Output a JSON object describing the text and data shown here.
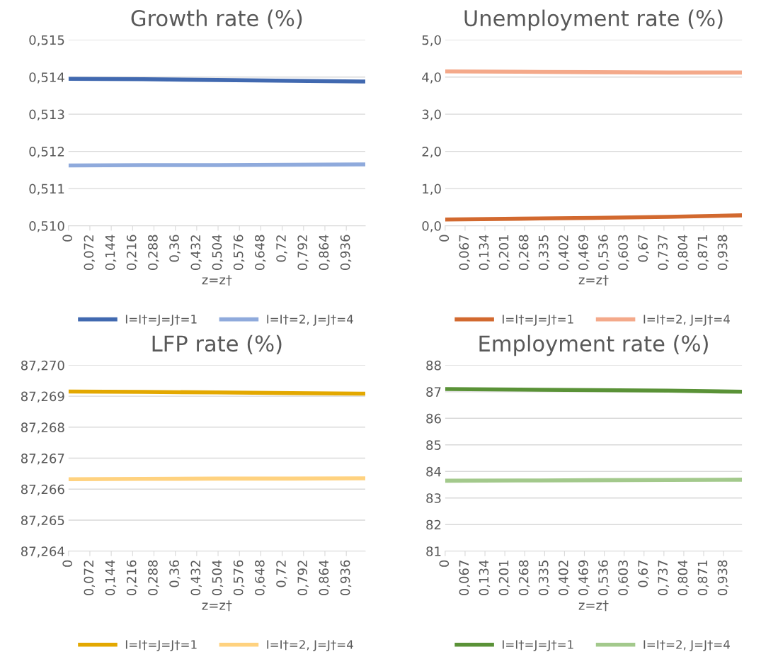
{
  "chart_data": [
    {
      "type": "line",
      "title": "Growth rate (%)",
      "xlabel": "z=z†",
      "series": [
        {
          "name": "I=I†=J=J†=1",
          "color": "#4169b0",
          "x": [
            0,
            0.25,
            0.5,
            0.75,
            1.0
          ],
          "values": [
            0.51395,
            0.51394,
            0.51392,
            0.5139,
            0.51388
          ]
        },
        {
          "name": "I=I†=2, J=J†=4",
          "color": "#8faadc",
          "x": [
            0,
            0.25,
            0.5,
            0.75,
            1.0
          ],
          "values": [
            0.51162,
            0.51163,
            0.51163,
            0.51164,
            0.51165
          ]
        }
      ],
      "xlim": [
        0,
        1.0
      ],
      "xticks": [
        0,
        {
          "value": 0.072,
          "label": "0,072"
        },
        {
          "value": 0.144,
          "label": "0,144"
        },
        {
          "value": 0.216,
          "label": "0,216"
        },
        {
          "value": 0.288,
          "label": "0,288"
        },
        {
          "value": 0.36,
          "label": "0,36"
        },
        {
          "value": 0.432,
          "label": "0,432"
        },
        {
          "value": 0.504,
          "label": "0,504"
        },
        {
          "value": 0.576,
          "label": "0,576"
        },
        {
          "value": 0.648,
          "label": "0,648"
        },
        {
          "value": 0.72,
          "label": "0,72"
        },
        {
          "value": 0.792,
          "label": "0,792"
        },
        {
          "value": 0.864,
          "label": "0,864"
        },
        {
          "value": 0.936,
          "label": "0,936"
        }
      ],
      "ylim": [
        0.51,
        0.515
      ],
      "yticks": [
        {
          "value": 0.51,
          "label": "0,510"
        },
        {
          "value": 0.511,
          "label": "0,511"
        },
        {
          "value": 0.512,
          "label": "0,512"
        },
        {
          "value": 0.513,
          "label": "0,513"
        },
        {
          "value": 0.514,
          "label": "0,514"
        },
        {
          "value": 0.515,
          "label": "0,515"
        }
      ],
      "grid": "y",
      "legend": "bottom"
    },
    {
      "type": "line",
      "title": "Unemployment rate (%)",
      "xlabel": "z=z†",
      "series": [
        {
          "name": "I=I†=J=J†=1",
          "color": "#d2692f",
          "x": [
            0,
            0.25,
            0.5,
            0.75,
            1.0
          ],
          "values": [
            0.17,
            0.19,
            0.21,
            0.24,
            0.28
          ]
        },
        {
          "name": "I=I†=2, J=J†=4",
          "color": "#f4a98a",
          "x": [
            0,
            0.25,
            0.5,
            0.75,
            1.0
          ],
          "values": [
            4.15,
            4.14,
            4.13,
            4.12,
            4.12
          ]
        }
      ],
      "xlim": [
        0,
        1.0
      ],
      "xticks": [
        0,
        {
          "value": 0.067,
          "label": "0,067"
        },
        {
          "value": 0.134,
          "label": "0,134"
        },
        {
          "value": 0.201,
          "label": "0,201"
        },
        {
          "value": 0.268,
          "label": "0,268"
        },
        {
          "value": 0.335,
          "label": "0,335"
        },
        {
          "value": 0.402,
          "label": "0,402"
        },
        {
          "value": 0.469,
          "label": "0,469"
        },
        {
          "value": 0.536,
          "label": "0,536"
        },
        {
          "value": 0.603,
          "label": "0,603"
        },
        {
          "value": 0.67,
          "label": "0,67"
        },
        {
          "value": 0.737,
          "label": "0,737"
        },
        {
          "value": 0.804,
          "label": "0,804"
        },
        {
          "value": 0.871,
          "label": "0,871"
        },
        {
          "value": 0.938,
          "label": "0,938"
        }
      ],
      "ylim": [
        0,
        5
      ],
      "yticks": [
        {
          "value": 0,
          "label": "0,0"
        },
        {
          "value": 1,
          "label": "1,0"
        },
        {
          "value": 2,
          "label": "2,0"
        },
        {
          "value": 3,
          "label": "3,0"
        },
        {
          "value": 4,
          "label": "4,0"
        },
        {
          "value": 5,
          "label": "5,0"
        }
      ],
      "grid": "y",
      "legend": "bottom"
    },
    {
      "type": "line",
      "title": "LFP rate (%)",
      "xlabel": "z=z†",
      "series": [
        {
          "name": "I=I†=J=J†=1",
          "color": "#e3a800",
          "x": [
            0,
            0.25,
            0.5,
            0.75,
            1.0
          ],
          "values": [
            87.26915,
            87.26914,
            87.26912,
            87.2691,
            87.26908
          ]
        },
        {
          "name": "I=I†=2, J=J†=4",
          "color": "#ffd27f",
          "x": [
            0,
            0.25,
            0.5,
            0.75,
            1.0
          ],
          "values": [
            87.26632,
            87.26633,
            87.26634,
            87.26634,
            87.26635
          ]
        }
      ],
      "xlim": [
        0,
        1.0
      ],
      "xticks": [
        0,
        {
          "value": 0.072,
          "label": "0,072"
        },
        {
          "value": 0.144,
          "label": "0,144"
        },
        {
          "value": 0.216,
          "label": "0,216"
        },
        {
          "value": 0.288,
          "label": "0,288"
        },
        {
          "value": 0.36,
          "label": "0,36"
        },
        {
          "value": 0.432,
          "label": "0,432"
        },
        {
          "value": 0.504,
          "label": "0,504"
        },
        {
          "value": 0.576,
          "label": "0,576"
        },
        {
          "value": 0.648,
          "label": "0,648"
        },
        {
          "value": 0.72,
          "label": "0,72"
        },
        {
          "value": 0.792,
          "label": "0,792"
        },
        {
          "value": 0.864,
          "label": "0,864"
        },
        {
          "value": 0.936,
          "label": "0,936"
        }
      ],
      "ylim": [
        87.264,
        87.27
      ],
      "yticks": [
        {
          "value": 87.264,
          "label": "87,264"
        },
        {
          "value": 87.265,
          "label": "87,265"
        },
        {
          "value": 87.266,
          "label": "87,266"
        },
        {
          "value": 87.267,
          "label": "87,267"
        },
        {
          "value": 87.268,
          "label": "87,268"
        },
        {
          "value": 87.269,
          "label": "87,269"
        },
        {
          "value": 87.27,
          "label": "87,270"
        }
      ],
      "grid": "y",
      "legend": "bottom"
    },
    {
      "type": "line",
      "title": "Employment rate (%)",
      "xlabel": "z=z†",
      "series": [
        {
          "name": "I=I†=J=J†=1",
          "color": "#5a9237",
          "x": [
            0,
            0.25,
            0.5,
            0.75,
            1.0
          ],
          "values": [
            87.1,
            87.08,
            87.06,
            87.04,
            87.0
          ]
        },
        {
          "name": "I=I†=2, J=J†=4",
          "color": "#a3c98c",
          "x": [
            0,
            0.25,
            0.5,
            0.75,
            1.0
          ],
          "values": [
            83.65,
            83.66,
            83.67,
            83.68,
            83.69
          ]
        }
      ],
      "xlim": [
        0,
        1.0
      ],
      "xticks": [
        0,
        {
          "value": 0.067,
          "label": "0,067"
        },
        {
          "value": 0.134,
          "label": "0,134"
        },
        {
          "value": 0.201,
          "label": "0,201"
        },
        {
          "value": 0.268,
          "label": "0,268"
        },
        {
          "value": 0.335,
          "label": "0,335"
        },
        {
          "value": 0.402,
          "label": "0,402"
        },
        {
          "value": 0.469,
          "label": "0,469"
        },
        {
          "value": 0.536,
          "label": "0,536"
        },
        {
          "value": 0.603,
          "label": "0,603"
        },
        {
          "value": 0.67,
          "label": "0,67"
        },
        {
          "value": 0.737,
          "label": "0,737"
        },
        {
          "value": 0.804,
          "label": "0,804"
        },
        {
          "value": 0.871,
          "label": "0,871"
        },
        {
          "value": 0.938,
          "label": "0,938"
        }
      ],
      "ylim": [
        81,
        88
      ],
      "yticks": [
        81,
        82,
        83,
        84,
        85,
        86,
        87,
        88
      ],
      "grid": "y",
      "legend": "bottom"
    }
  ]
}
